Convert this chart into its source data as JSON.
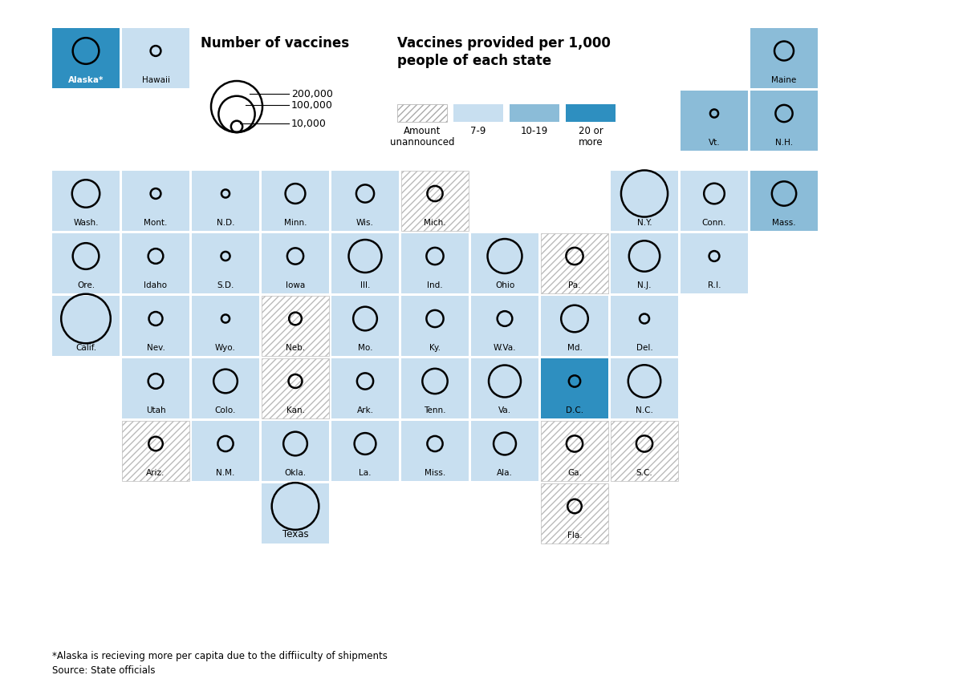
{
  "color_light": "#c8dff0",
  "color_medium": "#8bbcd8",
  "color_dark": "#2e8fc0",
  "color_alaska": "#2e8fc0",
  "color_hawaii": "#c8dff0",
  "footnote1": "*Alaska is recieving more per capita due to the diffiiculty of shipments",
  "footnote2": "Source: State officials",
  "title_vaccines": "Number of vaccines",
  "title_per_capita": "Vaccines provided per 1,000\npeople of each state",
  "size_labels": [
    "200,000",
    "100,000",
    "10,000"
  ],
  "size_values": [
    200000,
    100000,
    10000
  ],
  "per_capita_labels": [
    "Amount\nunannounced",
    "7-9",
    "10-19",
    "20 or\nmore"
  ],
  "per_capita_colors": [
    null,
    "#c8dff0",
    "#8bbcd8",
    "#2e8fc0"
  ],
  "states": [
    {
      "name": "Alaska*",
      "col": 0,
      "row": 0,
      "vaccines": 52000,
      "per_capita": 25,
      "special": "alaska"
    },
    {
      "name": "Hawaii",
      "col": 1,
      "row": 0,
      "vaccines": 8000,
      "per_capita": 7,
      "special": "hawaii"
    },
    {
      "name": "Maine",
      "col": 10,
      "row": 0,
      "vaccines": 28000,
      "per_capita": 10
    },
    {
      "name": "Vt.",
      "col": 9,
      "row": 1,
      "vaccines": 5000,
      "per_capita": 10
    },
    {
      "name": "N.H.",
      "col": 10,
      "row": 1,
      "vaccines": 22000,
      "per_capita": 10
    },
    {
      "name": "Wash.",
      "col": 0,
      "row": 2,
      "vaccines": 58000,
      "per_capita": 7
    },
    {
      "name": "Mont.",
      "col": 1,
      "row": 2,
      "vaccines": 8000,
      "per_capita": 7
    },
    {
      "name": "N.D.",
      "col": 2,
      "row": 2,
      "vaccines": 5000,
      "per_capita": 7
    },
    {
      "name": "Minn.",
      "col": 3,
      "row": 2,
      "vaccines": 30000,
      "per_capita": 7
    },
    {
      "name": "Wis.",
      "col": 4,
      "row": 2,
      "vaccines": 24000,
      "per_capita": 7
    },
    {
      "name": "Mich.",
      "col": 5,
      "row": 2,
      "vaccines": 18000,
      "per_capita": null
    },
    {
      "name": "N.Y.",
      "col": 8,
      "row": 2,
      "vaccines": 165000,
      "per_capita": 7
    },
    {
      "name": "Conn.",
      "col": 9,
      "row": 2,
      "vaccines": 32000,
      "per_capita": 7
    },
    {
      "name": "Mass.",
      "col": 10,
      "row": 2,
      "vaccines": 45000,
      "per_capita": 10
    },
    {
      "name": "Ore.",
      "col": 0,
      "row": 3,
      "vaccines": 52000,
      "per_capita": 7
    },
    {
      "name": "Idaho",
      "col": 1,
      "row": 3,
      "vaccines": 17000,
      "per_capita": 7
    },
    {
      "name": "S.D.",
      "col": 2,
      "row": 3,
      "vaccines": 6000,
      "per_capita": 7
    },
    {
      "name": "Iowa",
      "col": 3,
      "row": 3,
      "vaccines": 20000,
      "per_capita": 7
    },
    {
      "name": "Ill.",
      "col": 4,
      "row": 3,
      "vaccines": 82000,
      "per_capita": 7
    },
    {
      "name": "Ind.",
      "col": 5,
      "row": 3,
      "vaccines": 22000,
      "per_capita": 7
    },
    {
      "name": "Ohio",
      "col": 6,
      "row": 3,
      "vaccines": 90000,
      "per_capita": 7
    },
    {
      "name": "Pa.",
      "col": 7,
      "row": 3,
      "vaccines": 22000,
      "per_capita": null
    },
    {
      "name": "N.J.",
      "col": 8,
      "row": 3,
      "vaccines": 72000,
      "per_capita": 7
    },
    {
      "name": "R.I.",
      "col": 9,
      "row": 3,
      "vaccines": 8000,
      "per_capita": 7
    },
    {
      "name": "Calif.",
      "col": 0,
      "row": 4,
      "vaccines": 185000,
      "per_capita": 7
    },
    {
      "name": "Nev.",
      "col": 1,
      "row": 4,
      "vaccines": 14000,
      "per_capita": 7
    },
    {
      "name": "Wyo.",
      "col": 2,
      "row": 4,
      "vaccines": 5000,
      "per_capita": 7
    },
    {
      "name": "Neb.",
      "col": 3,
      "row": 4,
      "vaccines": 12000,
      "per_capita": null
    },
    {
      "name": "Mo.",
      "col": 4,
      "row": 4,
      "vaccines": 43000,
      "per_capita": 7
    },
    {
      "name": "Ky.",
      "col": 5,
      "row": 4,
      "vaccines": 22000,
      "per_capita": 7
    },
    {
      "name": "W.Va.",
      "col": 6,
      "row": 4,
      "vaccines": 17000,
      "per_capita": 7
    },
    {
      "name": "Md.",
      "col": 7,
      "row": 4,
      "vaccines": 55000,
      "per_capita": 7
    },
    {
      "name": "Del.",
      "col": 8,
      "row": 4,
      "vaccines": 7000,
      "per_capita": 7
    },
    {
      "name": "Utah",
      "col": 1,
      "row": 5,
      "vaccines": 17000,
      "per_capita": 7
    },
    {
      "name": "Colo.",
      "col": 2,
      "row": 5,
      "vaccines": 43000,
      "per_capita": 7
    },
    {
      "name": "Kan.",
      "col": 3,
      "row": 5,
      "vaccines": 14000,
      "per_capita": null
    },
    {
      "name": "Ark.",
      "col": 4,
      "row": 5,
      "vaccines": 20000,
      "per_capita": 7
    },
    {
      "name": "Tenn.",
      "col": 5,
      "row": 5,
      "vaccines": 48000,
      "per_capita": 7
    },
    {
      "name": "Va.",
      "col": 6,
      "row": 5,
      "vaccines": 78000,
      "per_capita": 7
    },
    {
      "name": "D.C.",
      "col": 7,
      "row": 5,
      "vaccines": 10000,
      "per_capita": 25
    },
    {
      "name": "N.C.",
      "col": 8,
      "row": 5,
      "vaccines": 80000,
      "per_capita": 7
    },
    {
      "name": "Ariz.",
      "col": 1,
      "row": 6,
      "vaccines": 15000,
      "per_capita": null
    },
    {
      "name": "N.M.",
      "col": 2,
      "row": 6,
      "vaccines": 18000,
      "per_capita": 7
    },
    {
      "name": "Okla.",
      "col": 3,
      "row": 6,
      "vaccines": 43000,
      "per_capita": 7
    },
    {
      "name": "La.",
      "col": 4,
      "row": 6,
      "vaccines": 35000,
      "per_capita": 7
    },
    {
      "name": "Miss.",
      "col": 5,
      "row": 6,
      "vaccines": 18000,
      "per_capita": 7
    },
    {
      "name": "Ala.",
      "col": 6,
      "row": 6,
      "vaccines": 38000,
      "per_capita": 7
    },
    {
      "name": "Ga.",
      "col": 7,
      "row": 6,
      "vaccines": 20000,
      "per_capita": null
    },
    {
      "name": "S.C.",
      "col": 8,
      "row": 6,
      "vaccines": 20000,
      "per_capita": null
    },
    {
      "name": "Texas",
      "col": 3,
      "row": 7,
      "vaccines": 168000,
      "per_capita": 7
    },
    {
      "name": "Fla.",
      "col": 7,
      "row": 7,
      "vaccines": 15000,
      "per_capita": null
    }
  ]
}
